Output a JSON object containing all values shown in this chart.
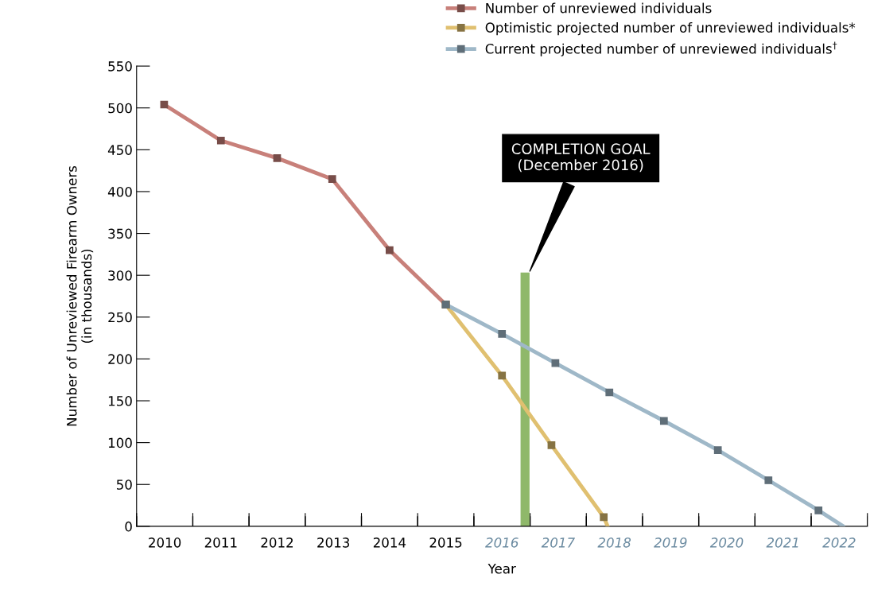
{
  "chart_data": {
    "type": "line",
    "xlabel": "Year",
    "ylabel": "Number of Unreviewed Firearm Owners\n(in thousands)",
    "series": [
      {
        "name": "Number of unreviewed individuals",
        "color": "#c8807a",
        "x": [
          2010.49,
          2011.5,
          2012.5,
          2013.48,
          2014.5,
          2015.5
        ],
        "values": [
          504,
          461,
          440,
          415,
          330,
          265
        ]
      },
      {
        "name": "Optimistic projected number of unreviewed individuals*",
        "color": "#e0c070",
        "x": [
          2015.5,
          2016.5,
          2017.38,
          2018.31,
          2018.38
        ],
        "values": [
          265,
          180,
          97,
          11,
          0
        ]
      },
      {
        "name": "Current projected number of unreviewed individuals$^{†}$",
        "color": "#9fb8c8",
        "x": [
          2015.5,
          2016.5,
          2017.45,
          2018.41,
          2019.38,
          2020.34,
          2021.24,
          2022.13,
          2022.57
        ],
        "values": [
          265,
          230,
          195,
          160,
          126,
          91,
          55,
          19,
          0
        ]
      }
    ],
    "marker": "square",
    "line_style": "solid",
    "grid": false,
    "legend": "top right",
    "xlim": [
      2010,
      2023
    ],
    "xticks": [
      {
        "value": 2010,
        "label": null
      },
      {
        "value": 2011,
        "label": null
      },
      {
        "value": 2012,
        "label": null
      },
      {
        "value": 2013,
        "label": null
      },
      {
        "value": 2014,
        "label": null
      },
      {
        "value": 2015,
        "label": null
      },
      {
        "value": 2016,
        "label": null
      },
      {
        "value": 2017,
        "label": null
      },
      {
        "value": 2018,
        "label": null
      },
      {
        "value": 2019,
        "label": null
      },
      {
        "value": 2020,
        "label": null
      },
      {
        "value": 2021,
        "label": null
      },
      {
        "value": 2022,
        "label": null
      },
      {
        "value": 2023,
        "label": null
      },
      {
        "value": 2010.5,
        "label": "2010"
      },
      {
        "value": 2011.5,
        "label": "2011"
      },
      {
        "value": 2012.5,
        "label": "2012"
      },
      {
        "value": 2013.5,
        "label": "2013"
      },
      {
        "value": 2014.5,
        "label": "2014"
      },
      {
        "value": 2015.5,
        "label": "2015"
      },
      {
        "value": 2016.5,
        "label": "2016"
      },
      {
        "value": 2017.5,
        "label": "2017"
      },
      {
        "value": 2018.5,
        "label": "2018"
      },
      {
        "value": 2019.5,
        "label": "2019"
      },
      {
        "value": 2020.5,
        "label": "2020"
      },
      {
        "value": 2021.5,
        "label": "2021"
      },
      {
        "value": 2022.5,
        "label": "2022"
      }
    ],
    "ylim": [
      0,
      550
    ],
    "yticks": [
      0,
      50,
      100,
      150,
      200,
      250,
      300,
      350,
      400,
      450,
      500,
      550
    ],
    "bands": [
      {
        "axis": "x",
        "from": 2016.84,
        "to": 2016.98,
        "label": "COMPLETION GOAL\n(December 2016)",
        "color": "#8fb86a"
      }
    ]
  }
}
